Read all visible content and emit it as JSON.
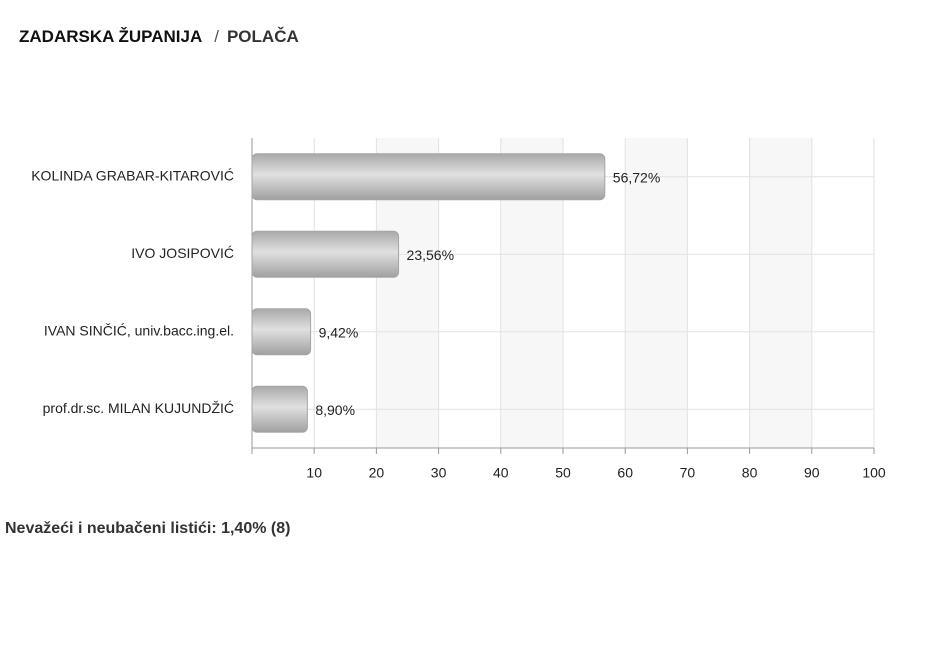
{
  "breadcrumb": {
    "items": [
      "ZADARSKA ŽUPANIJA",
      "POLAČA"
    ],
    "separator": "/"
  },
  "chart_data": {
    "type": "bar",
    "orientation": "horizontal",
    "categories": [
      "KOLINDA GRABAR-KITAROVIĆ",
      "IVO JOSIPOVIĆ",
      "IVAN SINČIĆ, univ.bacc.ing.el.",
      "prof.dr.sc. MILAN KUJUNDŽIĆ"
    ],
    "values": [
      56.72,
      23.56,
      9.42,
      8.9
    ],
    "value_labels": [
      "56,72%",
      "23,56%",
      "9,42%",
      "8,90%"
    ],
    "color": "#bdbdbd",
    "xlim": [
      0,
      100
    ],
    "xticks": [
      10,
      20,
      30,
      40,
      50,
      60,
      70,
      80,
      90,
      100
    ],
    "grid": true
  },
  "footer": {
    "note": "Nevažeći i neubačeni listići: 1,40% (8)"
  }
}
